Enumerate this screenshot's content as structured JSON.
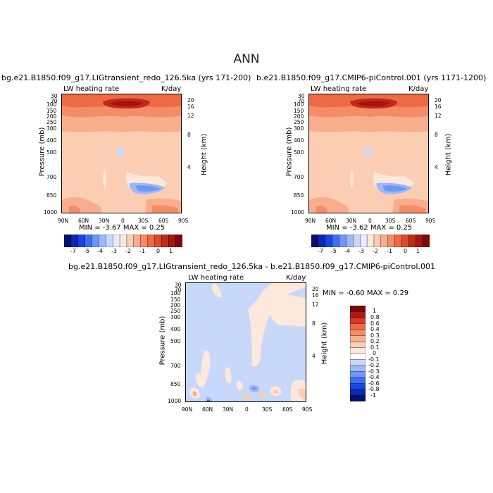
{
  "title": "ANN",
  "panels": [
    {
      "title": "bg.e21.B1850.f09_g17.LIGtransient_redo_126.5ka (yrs 171-200)",
      "variable": "LW heating rate",
      "units": "K/day",
      "min_max": "MIN =   -3.67   MAX =    0.25"
    },
    {
      "title": "b.e21.B1850.f09_g17.CMIP6-piControl.001 (yrs 1171-1200)",
      "variable": "LW heating rate",
      "units": "K/day",
      "min_max": "MIN =   -3.62   MAX =    0.25"
    },
    {
      "title": "bg.e21.B1850.f09_g17.LIGtransient_redo_126.5ka - b.e21.B1850.f09_g17.CMIP6-piControl.001",
      "variable": "LW heating rate",
      "units": "K/day",
      "min_max": "MIN =   -0.60   MAX =    0.29"
    }
  ],
  "axes": {
    "ylabel": "Pressure (mb)",
    "ylabel_right": "Height (km)",
    "pressure_ticks": [
      "30",
      "70",
      "100",
      "150",
      "200",
      "250",
      "300",
      "400",
      "500",
      "700",
      "850",
      "1000"
    ],
    "height_ticks": [
      "20",
      "16",
      "12",
      "8",
      "4"
    ],
    "lat_ticks": [
      "90N",
      "60N",
      "30N",
      "0",
      "30S",
      "60S",
      "90S"
    ]
  },
  "colorbar_top": {
    "labels": [
      "-7",
      "-5",
      "-4",
      "-3",
      "-2",
      "-1",
      "0",
      "1"
    ],
    "colors": [
      "#08106e",
      "#0c28b4",
      "#1946e0",
      "#3c6ef0",
      "#6e96f5",
      "#9cb9f8",
      "#c8d8fb",
      "#e6eefd",
      "#fde8dc",
      "#fbcdb2",
      "#f8ae8c",
      "#f48c66",
      "#ed6a45",
      "#de4a2c",
      "#c3291a",
      "#a51510",
      "#7d0508"
    ]
  },
  "colorbar_diff": {
    "labels": [
      "1",
      "0.8",
      "0.6",
      "0.4",
      "0.3",
      "0.2",
      "0.1",
      "0",
      "-0.1",
      "-0.2",
      "-0.3",
      "-0.4",
      "-0.6",
      "-0.8",
      "-1"
    ],
    "colors": [
      "#7d0508",
      "#b01a12",
      "#d6392a",
      "#ed6a45",
      "#f48c66",
      "#f8ae8c",
      "#fbcdb2",
      "#fde8dc",
      "#ffffff",
      "#c8d8fb",
      "#9cb9f8",
      "#6e96f5",
      "#3c6ef0",
      "#1946e0",
      "#0c28b4",
      "#08106e"
    ]
  },
  "chart_data": [
    {
      "type": "heatmap",
      "title": "bg.e21.B1850.f09_g17.LIGtransient_redo_126.5ka (yrs 171-200)",
      "x": [
        "90N",
        "60N",
        "30N",
        "0",
        "30S",
        "60S",
        "90S"
      ],
      "y": [
        30,
        70,
        100,
        150,
        200,
        250,
        300,
        400,
        500,
        700,
        850,
        1000
      ],
      "units": "K/day",
      "min": -3.67,
      "max": 0.25
    },
    {
      "type": "heatmap",
      "title": "b.e21.B1850.f09_g17.CMIP6-piControl.001 (yrs 1171-1200)",
      "x": [
        "90N",
        "60N",
        "30N",
        "0",
        "30S",
        "60S",
        "90S"
      ],
      "y": [
        30,
        70,
        100,
        150,
        200,
        250,
        300,
        400,
        500,
        700,
        850,
        1000
      ],
      "units": "K/day",
      "min": -3.62,
      "max": 0.25
    },
    {
      "type": "heatmap",
      "title": "bg.e21.B1850.f09_g17.LIGtransient_redo_126.5ka - b.e21.B1850.f09_g17.CMIP6-piControl.001",
      "x": [
        "90N",
        "60N",
        "30N",
        "0",
        "30S",
        "60S",
        "90S"
      ],
      "y": [
        30,
        70,
        100,
        150,
        200,
        250,
        300,
        400,
        500,
        700,
        850,
        1000
      ],
      "units": "K/day",
      "min": -0.6,
      "max": 0.29
    }
  ]
}
